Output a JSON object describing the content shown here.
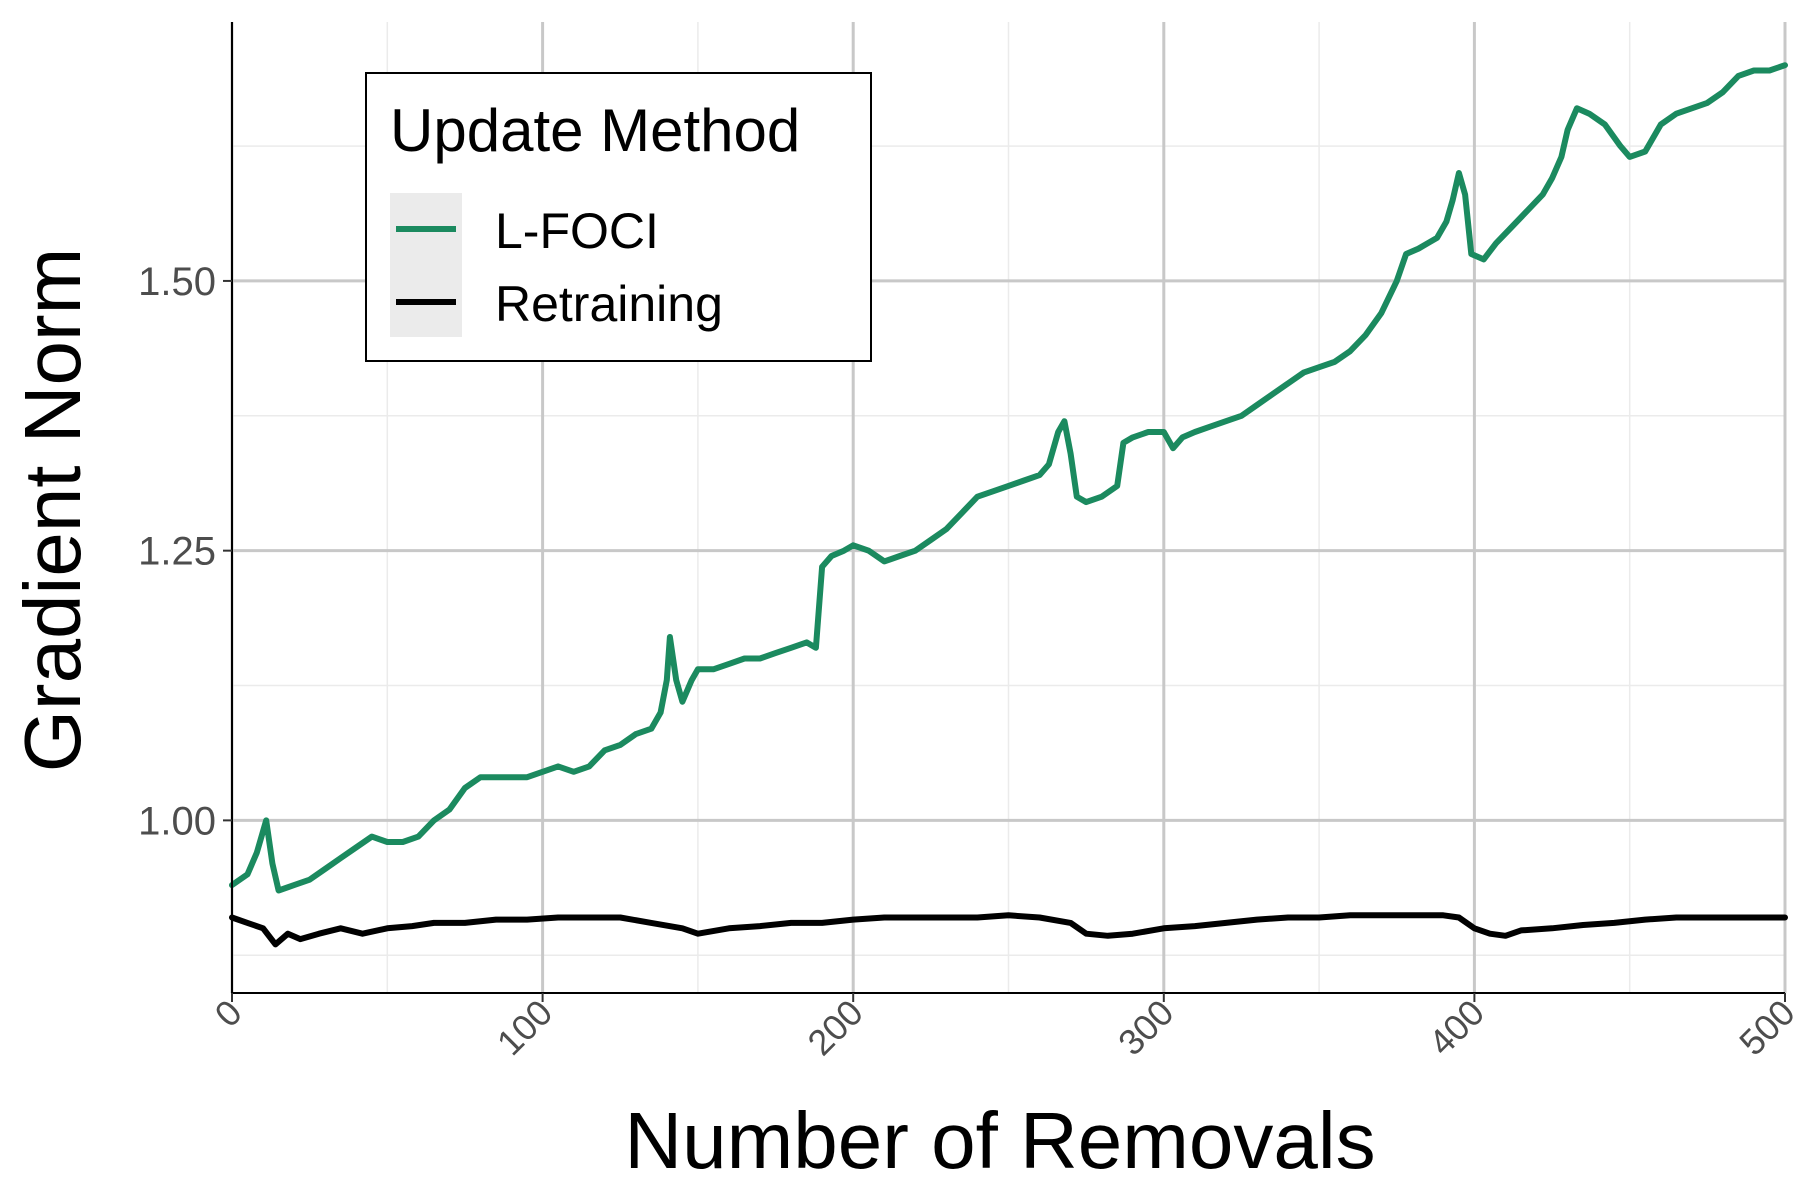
{
  "chart_data": {
    "type": "line",
    "title": "",
    "xlabel": "Number of Removals",
    "ylabel": "Gradient Norm",
    "xlim": [
      0,
      500
    ],
    "ylim": [
      0.84,
      1.74
    ],
    "x_ticks": [
      0,
      100,
      200,
      300,
      400,
      500
    ],
    "x_tick_labels": [
      "0",
      "100",
      "200",
      "300",
      "400",
      "500"
    ],
    "y_ticks": [
      1.0,
      1.25,
      1.5
    ],
    "y_tick_labels": [
      "1.00",
      "1.25",
      "1.50"
    ],
    "grid": true,
    "legend": {
      "title": "Update Method",
      "position": "top-left",
      "entries": [
        "L-FOCI",
        "Retraining"
      ]
    },
    "series": [
      {
        "name": "L-FOCI",
        "color": "#1b8a5f",
        "points": [
          [
            0,
            0.94
          ],
          [
            5,
            0.95
          ],
          [
            8,
            0.97
          ],
          [
            11,
            1.0
          ],
          [
            13,
            0.96
          ],
          [
            15,
            0.935
          ],
          [
            20,
            0.94
          ],
          [
            25,
            0.945
          ],
          [
            30,
            0.955
          ],
          [
            35,
            0.965
          ],
          [
            40,
            0.975
          ],
          [
            45,
            0.985
          ],
          [
            50,
            0.98
          ],
          [
            55,
            0.98
          ],
          [
            60,
            0.985
          ],
          [
            65,
            1.0
          ],
          [
            70,
            1.01
          ],
          [
            75,
            1.03
          ],
          [
            80,
            1.04
          ],
          [
            85,
            1.04
          ],
          [
            90,
            1.04
          ],
          [
            95,
            1.04
          ],
          [
            100,
            1.045
          ],
          [
            105,
            1.05
          ],
          [
            110,
            1.045
          ],
          [
            115,
            1.05
          ],
          [
            120,
            1.065
          ],
          [
            125,
            1.07
          ],
          [
            130,
            1.08
          ],
          [
            135,
            1.085
          ],
          [
            138,
            1.1
          ],
          [
            140,
            1.13
          ],
          [
            141,
            1.17
          ],
          [
            143,
            1.13
          ],
          [
            145,
            1.11
          ],
          [
            148,
            1.13
          ],
          [
            150,
            1.14
          ],
          [
            155,
            1.14
          ],
          [
            160,
            1.145
          ],
          [
            165,
            1.15
          ],
          [
            170,
            1.15
          ],
          [
            175,
            1.155
          ],
          [
            180,
            1.16
          ],
          [
            185,
            1.165
          ],
          [
            188,
            1.16
          ],
          [
            190,
            1.235
          ],
          [
            193,
            1.245
          ],
          [
            197,
            1.25
          ],
          [
            200,
            1.255
          ],
          [
            205,
            1.25
          ],
          [
            210,
            1.24
          ],
          [
            215,
            1.245
          ],
          [
            220,
            1.25
          ],
          [
            225,
            1.26
          ],
          [
            230,
            1.27
          ],
          [
            235,
            1.285
          ],
          [
            240,
            1.3
          ],
          [
            245,
            1.305
          ],
          [
            250,
            1.31
          ],
          [
            255,
            1.315
          ],
          [
            260,
            1.32
          ],
          [
            263,
            1.33
          ],
          [
            266,
            1.36
          ],
          [
            268,
            1.37
          ],
          [
            270,
            1.34
          ],
          [
            272,
            1.3
          ],
          [
            275,
            1.295
          ],
          [
            280,
            1.3
          ],
          [
            285,
            1.31
          ],
          [
            287,
            1.35
          ],
          [
            290,
            1.355
          ],
          [
            295,
            1.36
          ],
          [
            300,
            1.36
          ],
          [
            303,
            1.345
          ],
          [
            306,
            1.355
          ],
          [
            310,
            1.36
          ],
          [
            315,
            1.365
          ],
          [
            320,
            1.37
          ],
          [
            325,
            1.375
          ],
          [
            330,
            1.385
          ],
          [
            335,
            1.395
          ],
          [
            340,
            1.405
          ],
          [
            345,
            1.415
          ],
          [
            350,
            1.42
          ],
          [
            355,
            1.425
          ],
          [
            360,
            1.435
          ],
          [
            365,
            1.45
          ],
          [
            370,
            1.47
          ],
          [
            375,
            1.5
          ],
          [
            378,
            1.525
          ],
          [
            382,
            1.53
          ],
          [
            385,
            1.535
          ],
          [
            388,
            1.54
          ],
          [
            391,
            1.555
          ],
          [
            393,
            1.575
          ],
          [
            395,
            1.6
          ],
          [
            397,
            1.58
          ],
          [
            399,
            1.525
          ],
          [
            403,
            1.52
          ],
          [
            407,
            1.535
          ],
          [
            412,
            1.55
          ],
          [
            417,
            1.565
          ],
          [
            422,
            1.58
          ],
          [
            425,
            1.595
          ],
          [
            428,
            1.615
          ],
          [
            430,
            1.64
          ],
          [
            433,
            1.66
          ],
          [
            437,
            1.655
          ],
          [
            442,
            1.645
          ],
          [
            447,
            1.625
          ],
          [
            450,
            1.615
          ],
          [
            455,
            1.62
          ],
          [
            460,
            1.645
          ],
          [
            465,
            1.655
          ],
          [
            470,
            1.66
          ],
          [
            475,
            1.665
          ],
          [
            480,
            1.675
          ],
          [
            485,
            1.69
          ],
          [
            490,
            1.695
          ],
          [
            495,
            1.695
          ],
          [
            500,
            1.7
          ]
        ]
      },
      {
        "name": "Retraining",
        "color": "#000000",
        "points": [
          [
            0,
            0.91
          ],
          [
            5,
            0.905
          ],
          [
            10,
            0.9
          ],
          [
            14,
            0.885
          ],
          [
            18,
            0.895
          ],
          [
            22,
            0.89
          ],
          [
            28,
            0.895
          ],
          [
            35,
            0.9
          ],
          [
            42,
            0.895
          ],
          [
            50,
            0.9
          ],
          [
            58,
            0.902
          ],
          [
            65,
            0.905
          ],
          [
            75,
            0.905
          ],
          [
            85,
            0.908
          ],
          [
            95,
            0.908
          ],
          [
            105,
            0.91
          ],
          [
            115,
            0.91
          ],
          [
            125,
            0.91
          ],
          [
            135,
            0.905
          ],
          [
            145,
            0.9
          ],
          [
            150,
            0.895
          ],
          [
            160,
            0.9
          ],
          [
            170,
            0.902
          ],
          [
            180,
            0.905
          ],
          [
            190,
            0.905
          ],
          [
            200,
            0.908
          ],
          [
            210,
            0.91
          ],
          [
            220,
            0.91
          ],
          [
            230,
            0.91
          ],
          [
            240,
            0.91
          ],
          [
            250,
            0.912
          ],
          [
            260,
            0.91
          ],
          [
            270,
            0.905
          ],
          [
            275,
            0.895
          ],
          [
            282,
            0.893
          ],
          [
            290,
            0.895
          ],
          [
            300,
            0.9
          ],
          [
            310,
            0.902
          ],
          [
            320,
            0.905
          ],
          [
            330,
            0.908
          ],
          [
            340,
            0.91
          ],
          [
            350,
            0.91
          ],
          [
            360,
            0.912
          ],
          [
            370,
            0.912
          ],
          [
            380,
            0.912
          ],
          [
            390,
            0.912
          ],
          [
            395,
            0.91
          ],
          [
            400,
            0.9
          ],
          [
            405,
            0.895
          ],
          [
            410,
            0.893
          ],
          [
            415,
            0.898
          ],
          [
            425,
            0.9
          ],
          [
            435,
            0.903
          ],
          [
            445,
            0.905
          ],
          [
            455,
            0.908
          ],
          [
            465,
            0.91
          ],
          [
            475,
            0.91
          ],
          [
            485,
            0.91
          ],
          [
            495,
            0.91
          ],
          [
            500,
            0.91
          ]
        ]
      }
    ]
  }
}
